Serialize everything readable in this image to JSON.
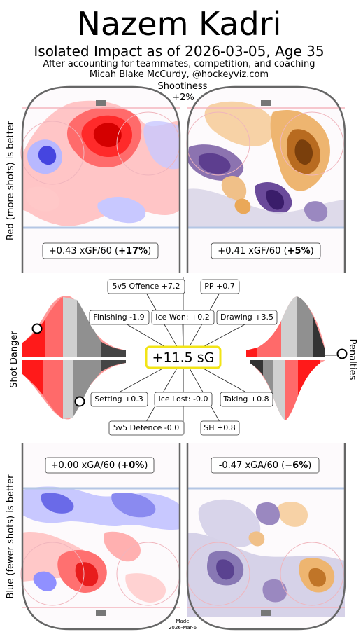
{
  "header": {
    "title": "Nazem Kadri",
    "subtitle": "Isolated Impact as of 2026-03-05, Age 35",
    "note": "After accounting for teammates, competition, and coaching",
    "credit": "Micah Blake McCurdy, @hockeyviz.com"
  },
  "shootiness": {
    "label": "Shootiness",
    "value": "+2%"
  },
  "axes": {
    "left_top": "Red (more shots) is better",
    "left_mid": "Shot Danger",
    "left_bottom": "Blue (fewer shots) is better",
    "right_mid": "Penalties"
  },
  "offence": {
    "left": {
      "value": "+0.43 xGF/60 (",
      "pct": "+17%",
      "close": ")"
    },
    "right": {
      "value": "+0.41 xGF/60 (",
      "pct": "+5%",
      "close": ")"
    }
  },
  "defence": {
    "left": {
      "value": "+0.00 xGA/60 (",
      "pct": "+0%",
      "close": ")"
    },
    "right": {
      "value": "-0.47 xGA/60 (",
      "pct": "−6%",
      "close": ")"
    }
  },
  "center": {
    "total": "+11.5 sG"
  },
  "components": {
    "offence_5v5": "5v5 Offence +7.2",
    "pp": "PP +0.7",
    "finishing": "Finishing -1.9",
    "ice_won": "Ice Won: +0.2",
    "drawing": "Drawing +3.5",
    "setting": "Setting +0.3",
    "ice_lost": "Ice Lost: -0.0",
    "taking": "Taking +0.8",
    "defence_5v5": "5v5 Defence -0.0",
    "sh": "SH +0.8"
  },
  "footer": {
    "made": "Made",
    "date": "2026-Mar-6"
  },
  "colors": {
    "red": "#e8212a",
    "blue": "#2b2bdc",
    "orange": "#d9822b",
    "purple": "#4b2d7f",
    "rink": "#666666",
    "highlight": "#f2e416"
  },
  "chart_data": {
    "type": "table",
    "player": "Nazem Kadri",
    "as_of": "2026-03-05",
    "age": 35,
    "shootiness_pct": 2,
    "total_sG": 11.5,
    "xGF_per60": {
      "even_strength": 0.43,
      "even_strength_pct": 17,
      "power_play": 0.41,
      "power_play_pct": 5
    },
    "xGA_per60": {
      "even_strength": 0.0,
      "even_strength_pct": 0,
      "short_handed": -0.47,
      "short_handed_pct": -6
    },
    "components_sG": {
      "5v5 Offence": 7.2,
      "PP": 0.7,
      "Finishing": -1.9,
      "Ice Won": 0.2,
      "Drawing": 3.5,
      "Setting": 0.3,
      "Ice Lost": -0.0,
      "Taking": 0.8,
      "5v5 Defence": -0.0,
      "SH": 0.8
    },
    "distribution_markers": {
      "shot_danger_offence": 0.12,
      "shot_danger_defence": 0.55,
      "penalties": 0.97
    }
  }
}
